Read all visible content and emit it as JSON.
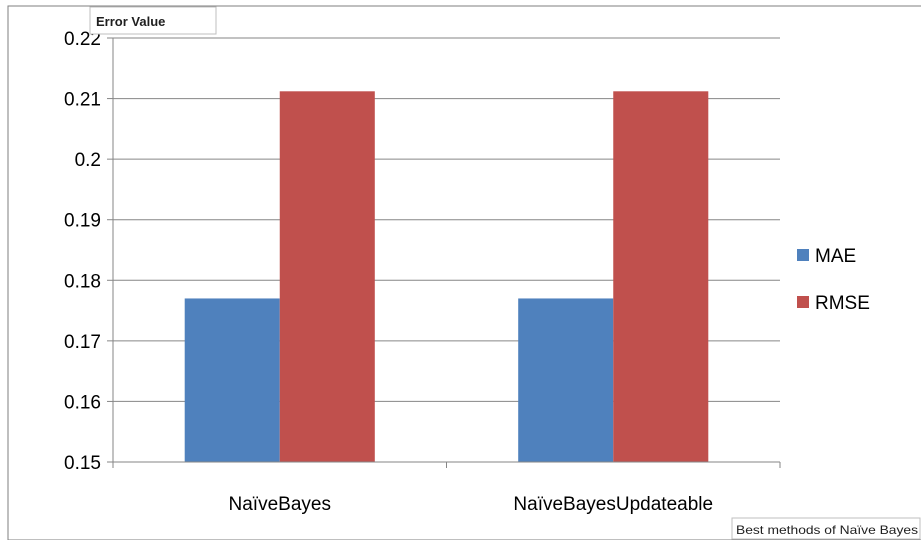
{
  "chart_data": {
    "type": "bar",
    "title": "",
    "ylabel": "Error Value",
    "xlabel": "Best methods of Naïve Bayes",
    "categories": [
      "NaïveBayes",
      "NaïveBayesUpdateable"
    ],
    "series": [
      {
        "name": "MAE",
        "values": [
          0.177,
          0.177
        ],
        "color": "#4f81bd"
      },
      {
        "name": "RMSE",
        "values": [
          0.2112,
          0.2112
        ],
        "color": "#c0504d"
      }
    ],
    "ylim": [
      0.15,
      0.22
    ],
    "yticks": [
      "0.15",
      "0.16",
      "0.17",
      "0.18",
      "0.19",
      "0.2",
      "0.21",
      "0.22"
    ],
    "ytick_values": [
      0.15,
      0.16,
      0.17,
      0.18,
      0.19,
      0.2,
      0.21,
      0.22
    ],
    "grid": true,
    "legend_position": "right"
  }
}
